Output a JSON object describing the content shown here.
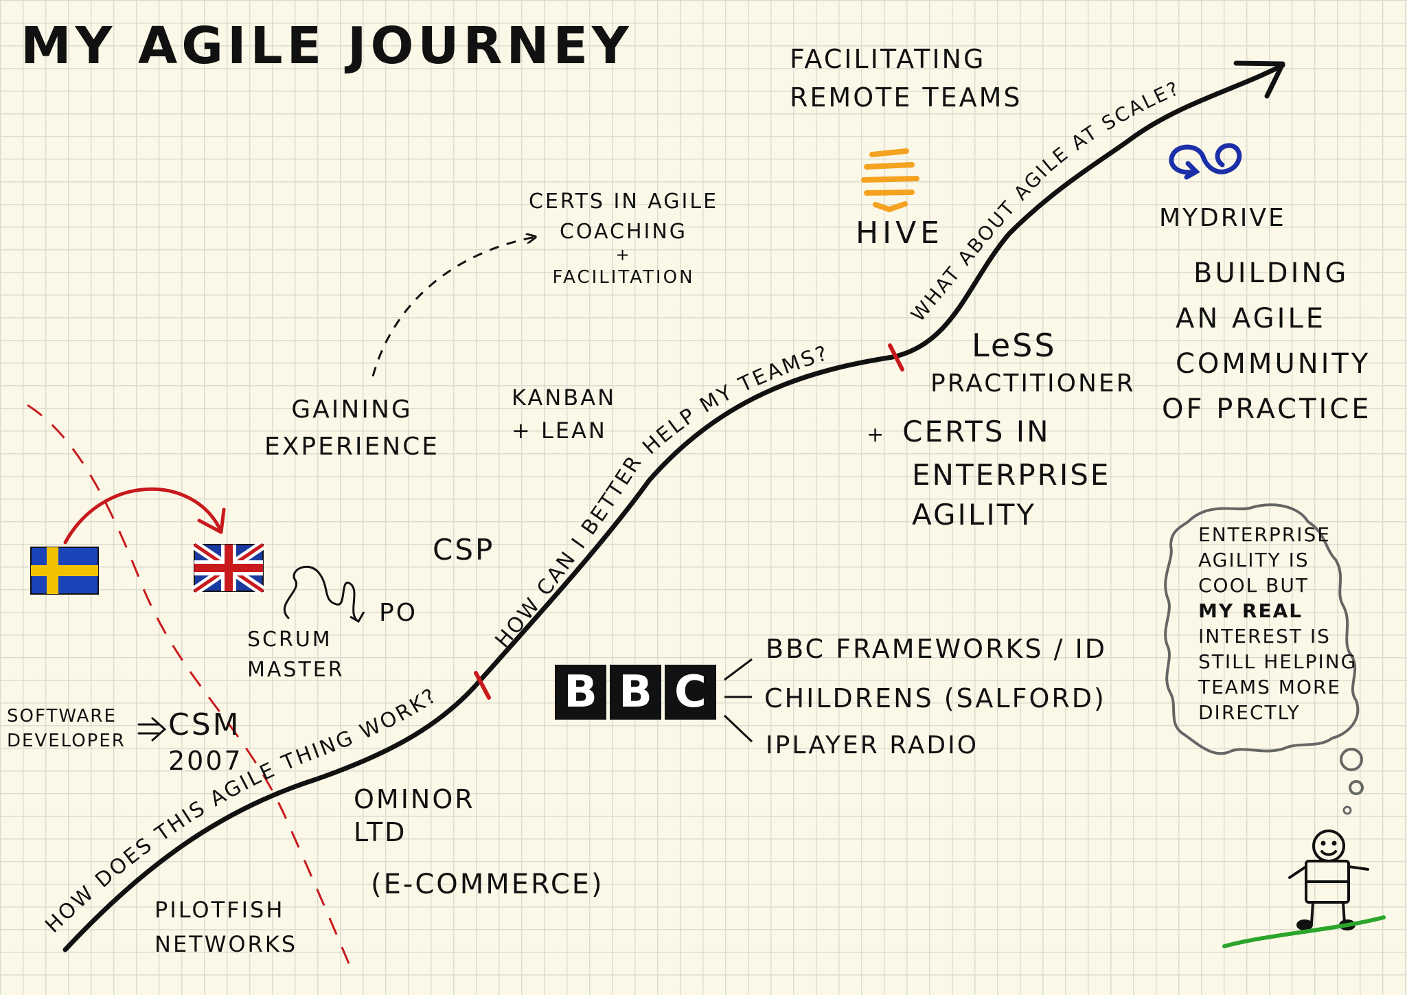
{
  "title": "MY AGILE JOURNEY",
  "journey_path": {
    "segment_1": "HOW DOES THIS AGILE THING WORK?",
    "segment_2": "HOW CAN I BETTER HELP MY TEAMS?",
    "segment_3": "WHAT ABOUT AGILE AT SCALE?"
  },
  "career": {
    "software_developer": [
      "SOFTWARE",
      "DEVELOPER"
    ],
    "csm": [
      "CSM",
      "2007"
    ],
    "scrum_master": [
      "SCRUM",
      "MASTER"
    ],
    "po": "PO",
    "gaining_experience": [
      "GAINING",
      "EXPERIENCE"
    ],
    "certs_coaching": [
      "CERTS IN AGILE",
      "COACHING",
      "+",
      "FACILITATION"
    ],
    "kanban": [
      "KANBAN",
      "+ LEAN"
    ],
    "csp": "CSP",
    "pilotfish": [
      "PILOTFISH",
      "NETWORKS"
    ],
    "ominor": [
      "OMINOR",
      "LTD"
    ],
    "ecommerce": "(E-COMMERCE)",
    "facilitating_remote": [
      "FACILITATING",
      "REMOTE TEAMS"
    ],
    "hive": "HIVE",
    "less": [
      "LeSS",
      "PRACTITIONER"
    ],
    "certs_enterprise": [
      "+",
      "CERTS IN",
      "ENTERPRISE",
      "AGILITY"
    ],
    "mydrive": "MYDRIVE",
    "community": [
      "BUILDING",
      "AN AGILE",
      "COMMUNITY",
      "OF PRACTICE"
    ]
  },
  "bbc": {
    "letters": [
      "B",
      "B",
      "C"
    ],
    "items": [
      "BBC FRAMEWORKS / ID",
      "CHILDRENS (SALFORD)",
      "IPLAYER RADIO"
    ]
  },
  "thought_bubble": {
    "lines": [
      "ENTERPRISE",
      "AGILITY IS",
      "COOL BUT",
      "MY REAL",
      "INTEREST IS",
      "STILL HELPING",
      "TEAMS MORE",
      "DIRECTLY"
    ]
  },
  "colors": {
    "ink": "#111111",
    "red": "#c8191d",
    "hive_orange": "#f4a21f",
    "mydrive_blue": "#1a2fa8",
    "grass_green": "#2aa52a",
    "sweden_blue": "#1a44b8",
    "sweden_yellow": "#f2c200",
    "uk_blue": "#1a3aa0"
  },
  "icons": [
    "sweden-flag-icon",
    "uk-flag-icon",
    "hive-logo-icon",
    "mydrive-logo-icon",
    "stick-figure-icon",
    "squiggle-icon"
  ]
}
